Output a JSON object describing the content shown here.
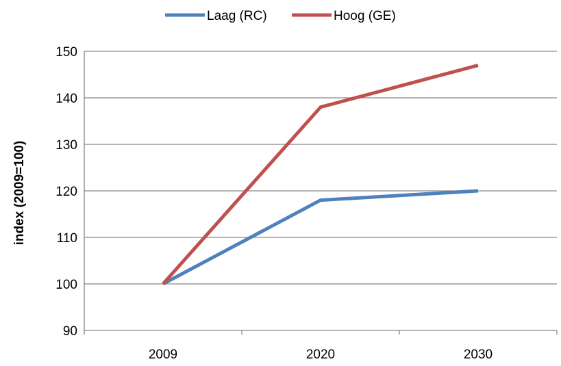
{
  "chart_data": {
    "type": "line",
    "title": "",
    "xlabel": "",
    "ylabel": "index (2009=100)",
    "categories": [
      "2009",
      "2020",
      "2030"
    ],
    "ylim": [
      90,
      150
    ],
    "yticks": [
      90,
      100,
      110,
      120,
      130,
      140,
      150
    ],
    "grid": true,
    "legend_position": "top",
    "series": [
      {
        "name": "Laag (RC)",
        "color": "#4F81BD",
        "values": [
          100,
          118,
          120
        ]
      },
      {
        "name": "Hoog (GE)",
        "color": "#C0504D",
        "values": [
          100,
          138,
          147
        ]
      }
    ]
  }
}
